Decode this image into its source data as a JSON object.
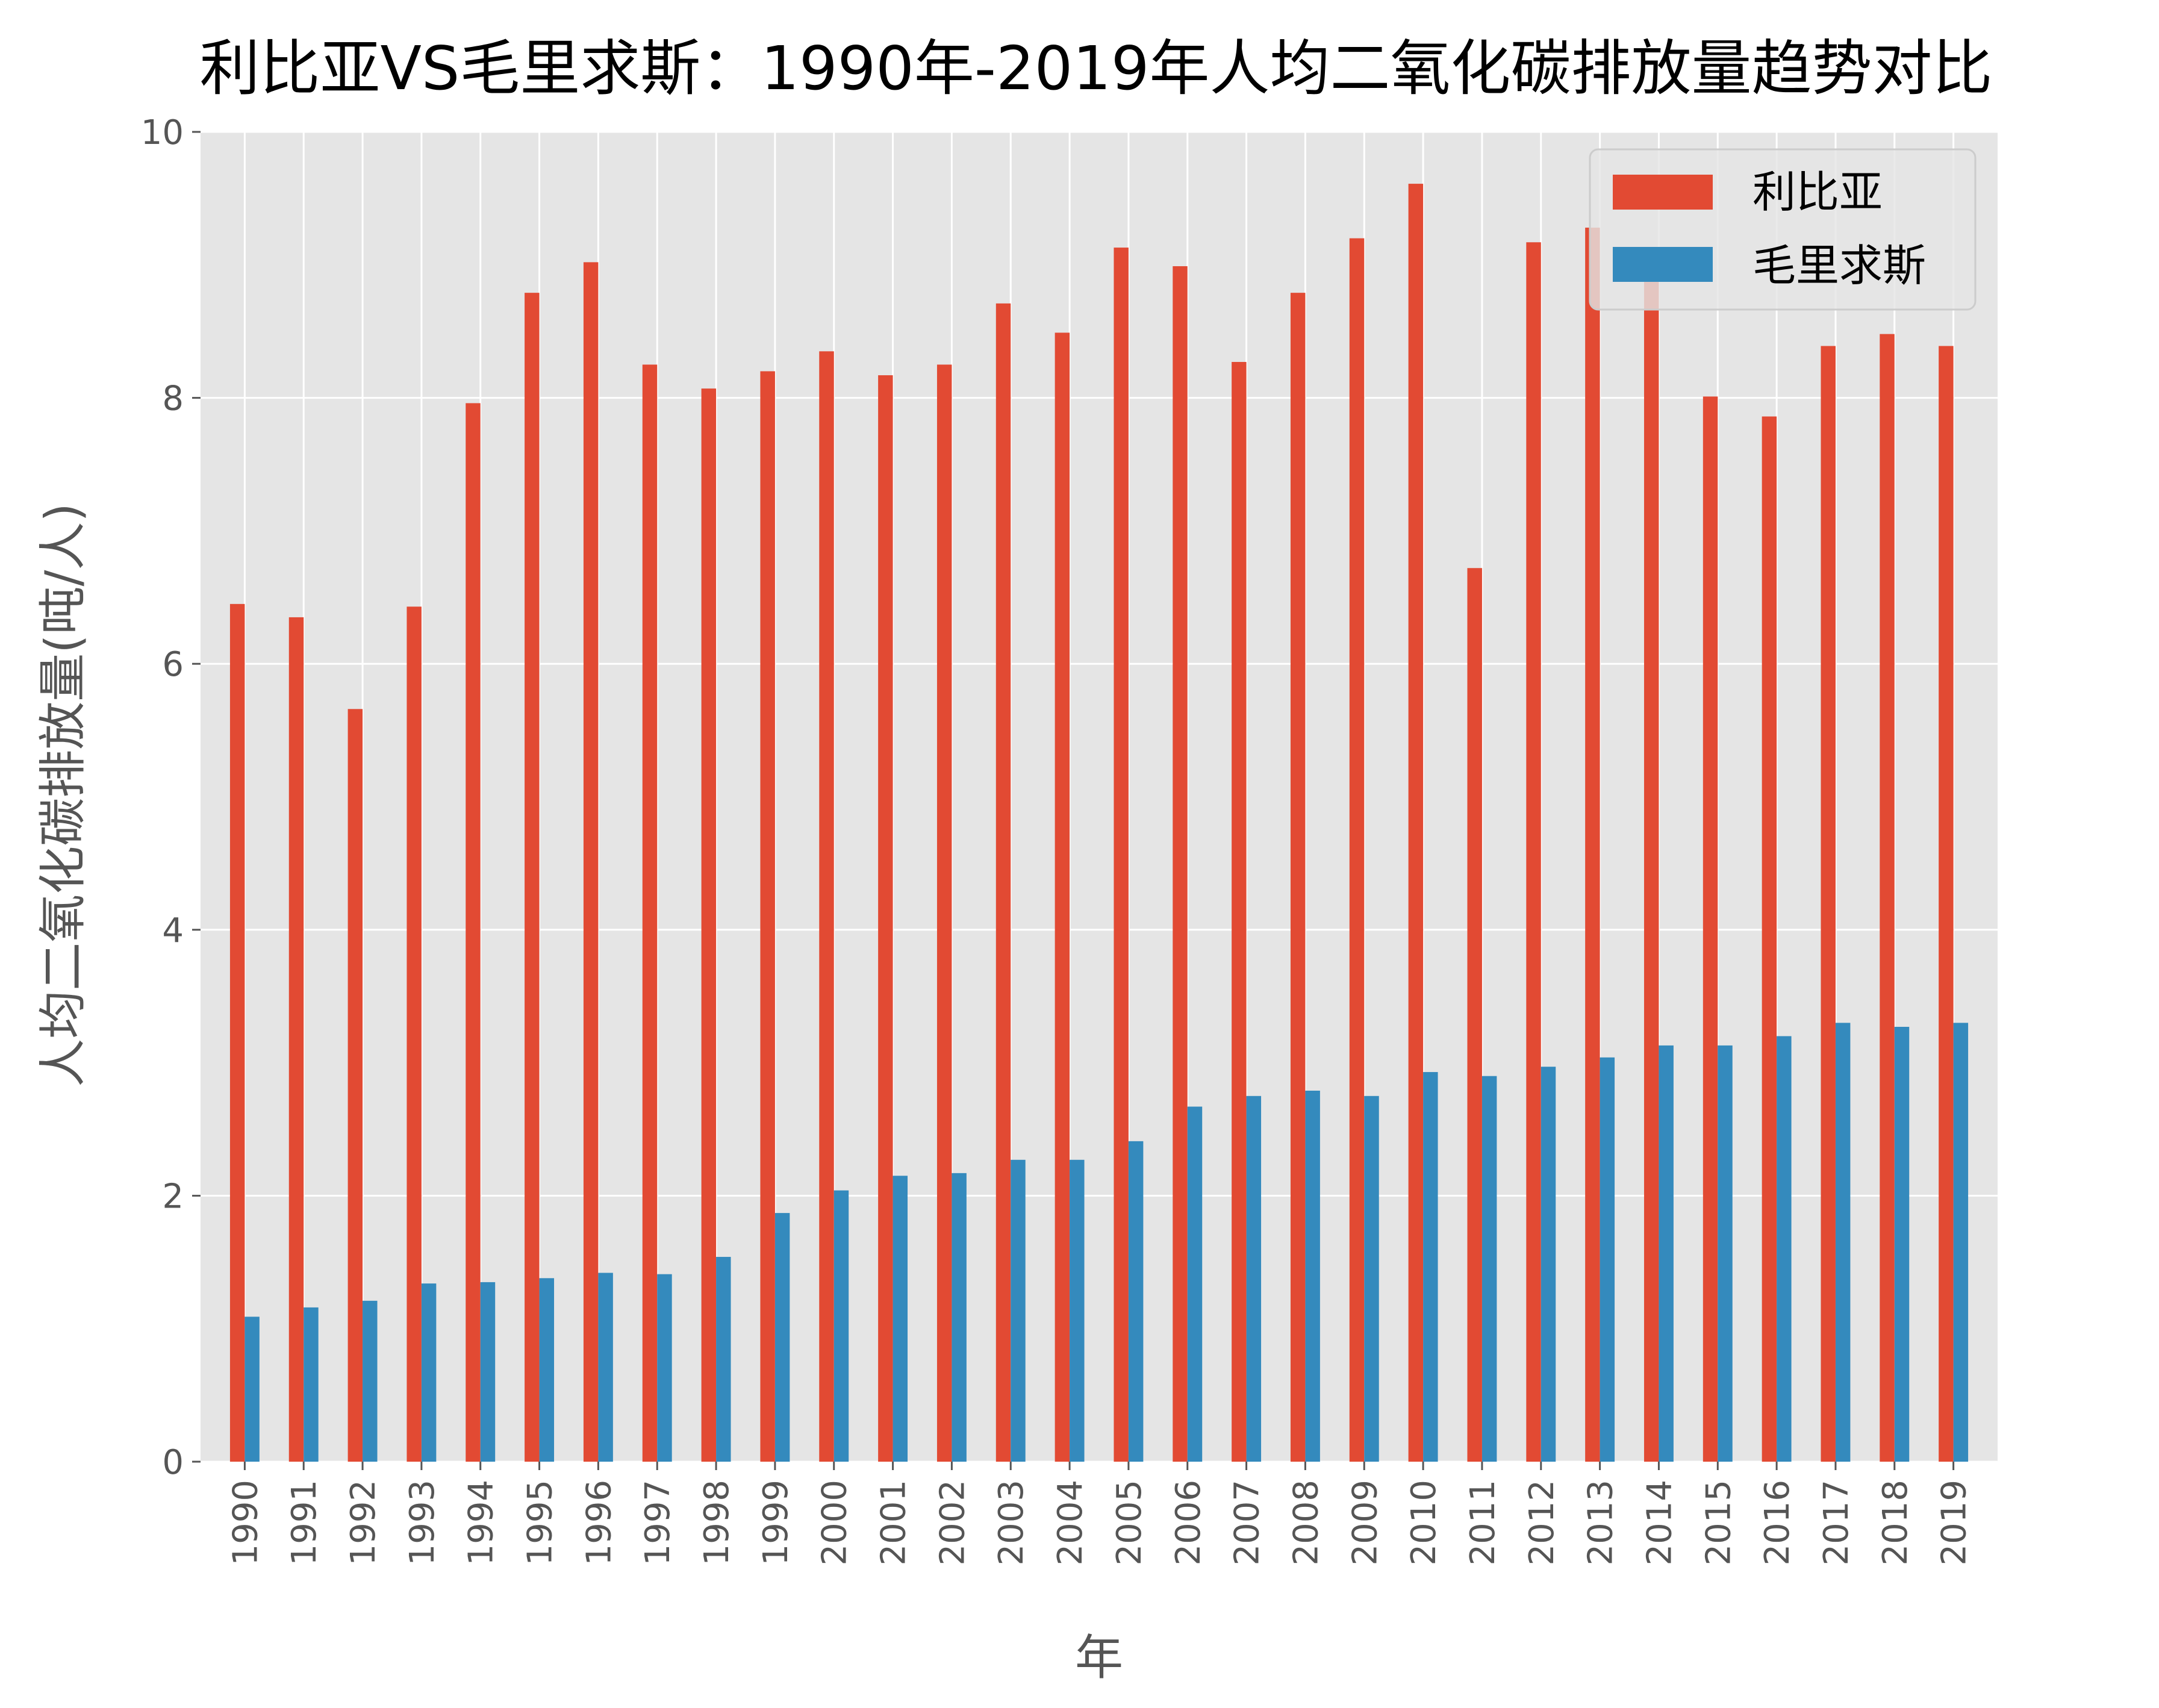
{
  "chart_data": {
    "type": "bar",
    "title": "利比亚VS毛里求斯：1990年-2019年人均二氧化碳排放量趋势对比",
    "xlabel": "年",
    "ylabel": "人均二氧化碳排放量(吨/人)",
    "ylim": [
      0,
      10
    ],
    "yticks": [
      "0",
      "2",
      "4",
      "6",
      "8",
      "10"
    ],
    "grid": true,
    "legend_position": "top-right",
    "categories": [
      "1990",
      "1991",
      "1992",
      "1993",
      "1994",
      "1995",
      "1996",
      "1997",
      "1998",
      "1999",
      "2000",
      "2001",
      "2002",
      "2003",
      "2004",
      "2005",
      "2006",
      "2007",
      "2008",
      "2009",
      "2010",
      "2011",
      "2012",
      "2013",
      "2014",
      "2015",
      "2016",
      "2017",
      "2018",
      "2019"
    ],
    "series": [
      {
        "name": "利比亚",
        "color": "#E24A33",
        "values": [
          6.45,
          6.35,
          5.66,
          6.43,
          7.96,
          8.79,
          9.02,
          8.25,
          8.07,
          8.2,
          8.35,
          8.17,
          8.25,
          8.71,
          8.49,
          9.13,
          8.99,
          8.27,
          8.79,
          9.2,
          9.61,
          6.72,
          9.17,
          9.28,
          8.98,
          8.01,
          7.86,
          8.39,
          8.48,
          8.39
        ]
      },
      {
        "name": "毛里求斯",
        "color": "#348ABD",
        "values": [
          1.09,
          1.16,
          1.21,
          1.34,
          1.35,
          1.38,
          1.42,
          1.41,
          1.54,
          1.87,
          2.04,
          2.15,
          2.17,
          2.27,
          2.27,
          2.41,
          2.67,
          2.75,
          2.79,
          2.75,
          2.93,
          2.9,
          2.97,
          3.04,
          3.13,
          3.13,
          3.2,
          3.3,
          3.27,
          3.3
        ]
      }
    ]
  },
  "colors": {
    "plot_background": "#E5E5E5",
    "grid": "#FFFFFF",
    "text": "#555555"
  }
}
